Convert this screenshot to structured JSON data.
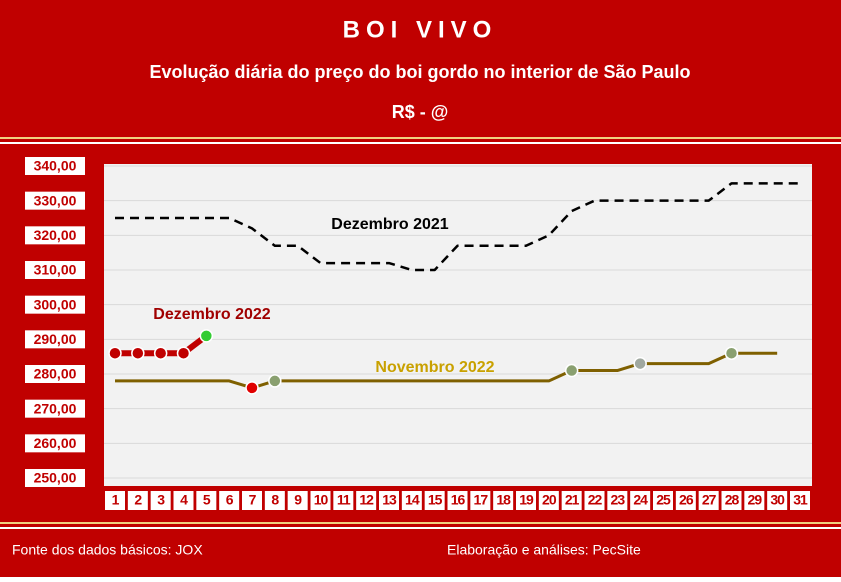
{
  "chart_data": {
    "type": "line",
    "title": "BOI VIVO",
    "subtitle": "Evolução diária do preço do boi gordo no interior de São Paulo",
    "unit": "R$ - @",
    "categories": [
      "1",
      "2",
      "3",
      "4",
      "5",
      "6",
      "7",
      "8",
      "9",
      "10",
      "11",
      "12",
      "13",
      "14",
      "15",
      "16",
      "17",
      "18",
      "19",
      "20",
      "21",
      "22",
      "23",
      "24",
      "25",
      "26",
      "27",
      "28",
      "29",
      "30",
      "31"
    ],
    "ylim": [
      250,
      340
    ],
    "yticks": [
      {
        "value": 250,
        "label": "250,00"
      },
      {
        "value": 260,
        "label": "260,00"
      },
      {
        "value": 270,
        "label": "270,00"
      },
      {
        "value": 280,
        "label": "280,00"
      },
      {
        "value": 290,
        "label": "290,00"
      },
      {
        "value": 300,
        "label": "300,00"
      },
      {
        "value": 310,
        "label": "310,00"
      },
      {
        "value": 320,
        "label": "320,00"
      },
      {
        "value": 330,
        "label": "330,00"
      },
      {
        "value": 340,
        "label": "340,00"
      }
    ],
    "grid": true,
    "series": [
      {
        "name": "Dezembro 2021",
        "color": "#000000",
        "dashed": true,
        "values": [
          325,
          325,
          325,
          325,
          325,
          325,
          322,
          317,
          317,
          312,
          312,
          312,
          312,
          310,
          310,
          317,
          317,
          317,
          317,
          320,
          327,
          330,
          330,
          330,
          330,
          330,
          330,
          335,
          335,
          335,
          335
        ]
      },
      {
        "name": "Novembro 2022",
        "color": "#7f6000",
        "label_color": "#c9a100",
        "values": [
          278,
          278,
          278,
          278,
          278,
          278,
          276,
          278,
          278,
          278,
          278,
          278,
          278,
          278,
          278,
          278,
          278,
          278,
          278,
          278,
          281,
          281,
          281,
          283,
          283,
          283,
          283,
          286,
          286,
          286,
          null
        ],
        "marker_colors": [
          null,
          null,
          null,
          null,
          null,
          null,
          "#e00000",
          "#8aa070",
          null,
          null,
          null,
          null,
          null,
          null,
          null,
          null,
          null,
          null,
          null,
          null,
          "#8aa070",
          null,
          null,
          "#a0a8a0",
          null,
          null,
          null,
          "#8aa070",
          null,
          null,
          null
        ]
      },
      {
        "name": "Dezembro 2022",
        "color": "#c00000",
        "label_color": "#a00000",
        "values": [
          286,
          286,
          286,
          286,
          291,
          null,
          null,
          null,
          null,
          null,
          null,
          null,
          null,
          null,
          null,
          null,
          null,
          null,
          null,
          null,
          null,
          null,
          null,
          null,
          null,
          null,
          null,
          null,
          null,
          null,
          null
        ],
        "marker_colors": [
          "#c00000",
          "#c00000",
          "#c00000",
          "#c00000",
          "#33cc33",
          null,
          null,
          null,
          null,
          null,
          null,
          null,
          null,
          null,
          null,
          null,
          null,
          null,
          null,
          null,
          null,
          null,
          null,
          null,
          null,
          null,
          null,
          null,
          null,
          null,
          null
        ]
      }
    ],
    "footer_left": "Fonte dos dados básicos: JOX",
    "footer_right": "Elaboração e análises: PecSite"
  }
}
